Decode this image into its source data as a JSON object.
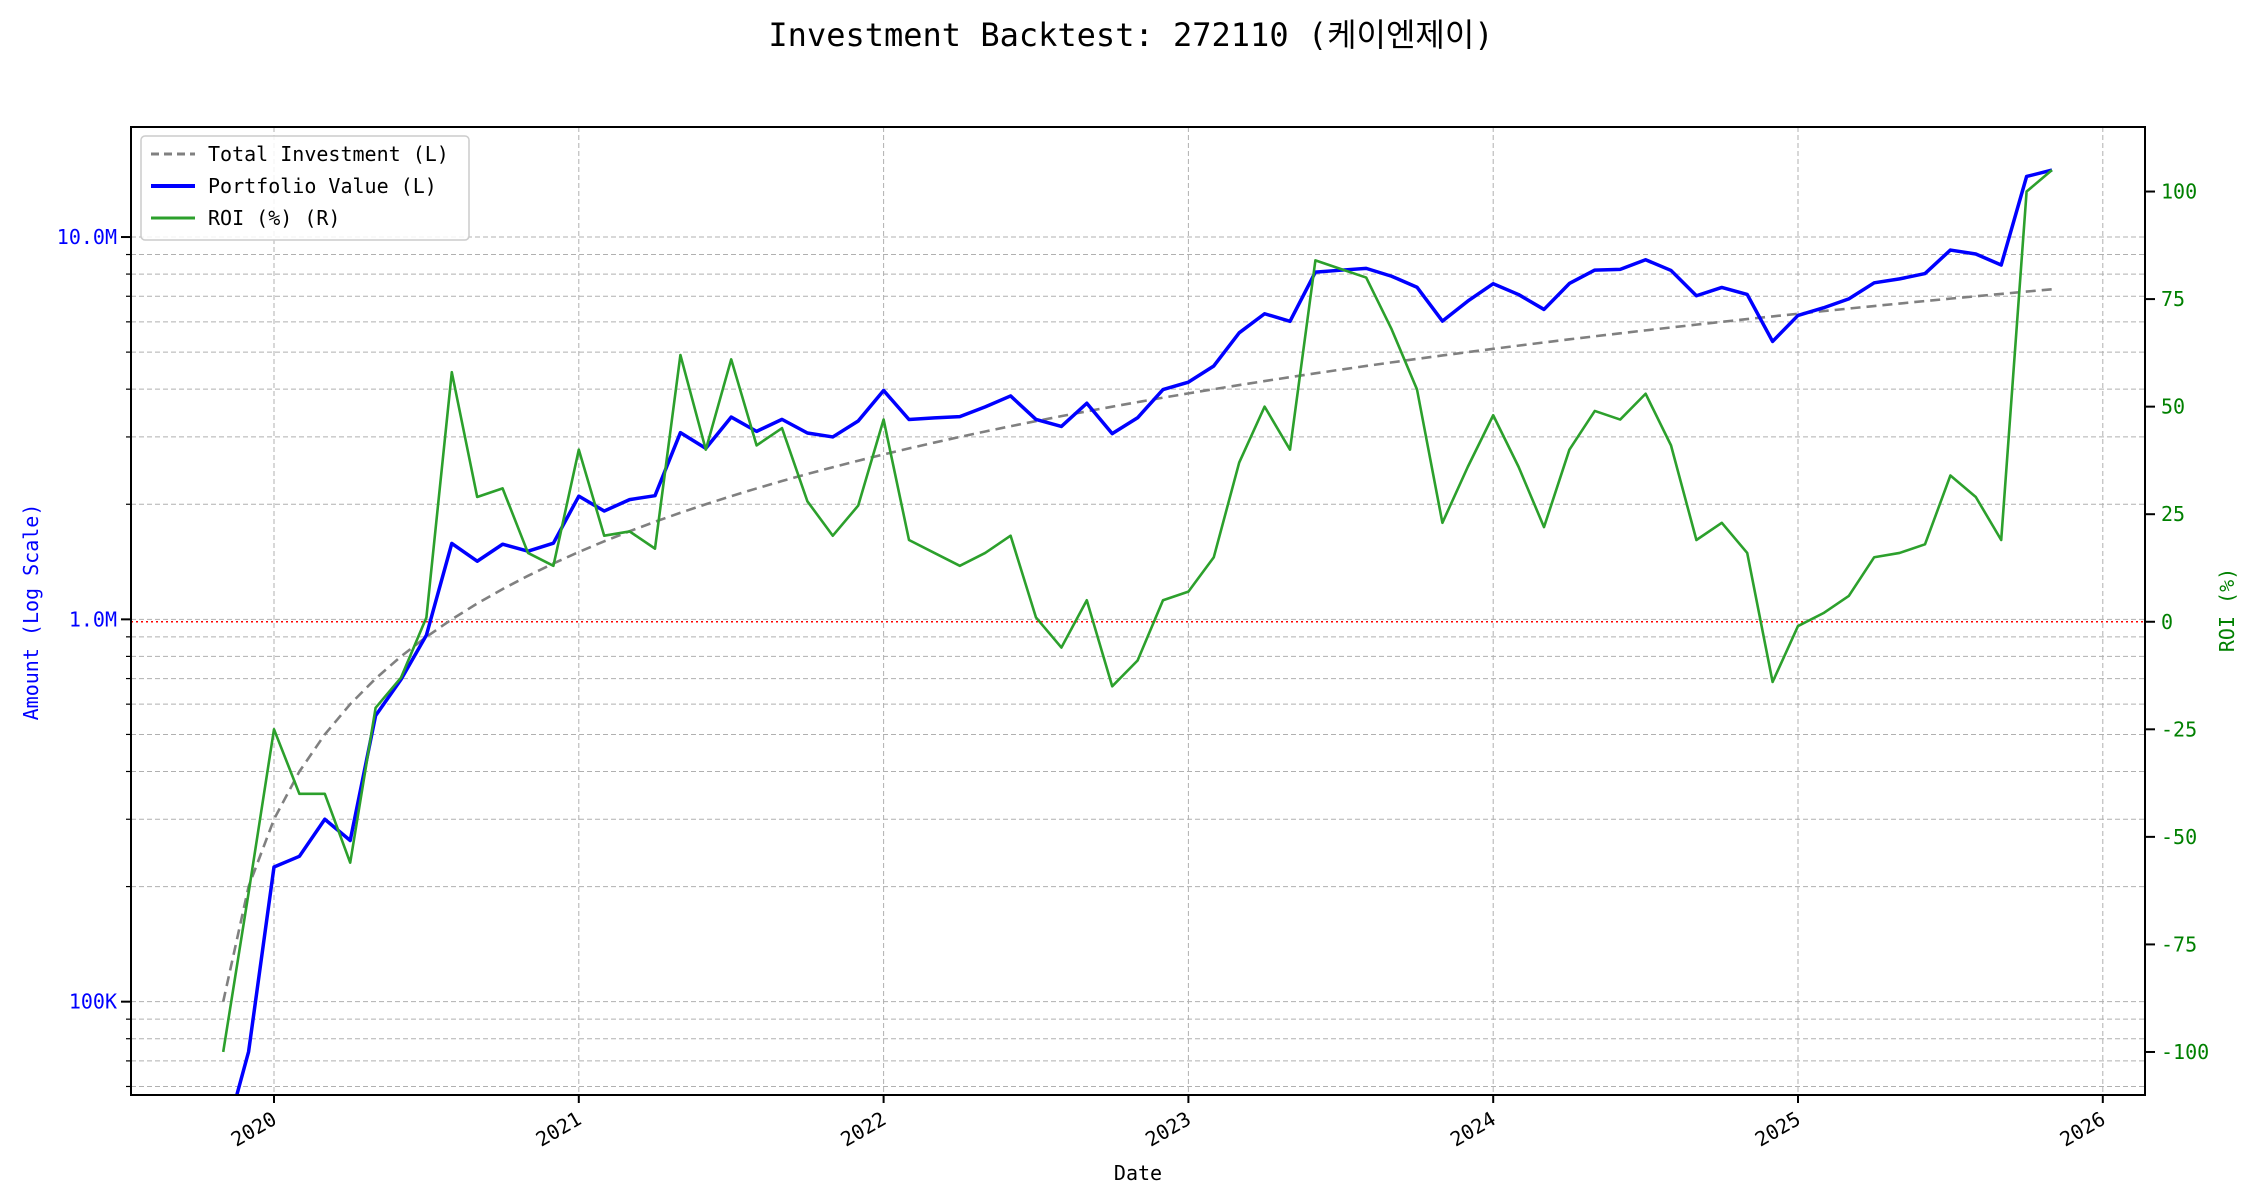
{
  "chart_data": {
    "type": "line",
    "title": "Investment Backtest: 272110 (케이엔제이)",
    "xlabel": "Date",
    "ylabel_left": "Amount (Log Scale)",
    "ylabel_right": "ROI (%)",
    "x_ticks": [
      "2020",
      "2021",
      "2022",
      "2023",
      "2024",
      "2025",
      "2026"
    ],
    "x_range": [
      "2019-07",
      "2026-02"
    ],
    "left_axis": {
      "scale": "log",
      "range": [
        57000,
        19400000
      ],
      "ticks": [
        {
          "value": 100000,
          "label": "100K"
        },
        {
          "value": 1000000,
          "label": "1.0M"
        },
        {
          "value": 10000000,
          "label": "10.0M"
        }
      ],
      "color": "#0000ff"
    },
    "right_axis": {
      "scale": "linear",
      "range": [
        -110,
        115
      ],
      "ticks": [
        "-100",
        "-75",
        "-50",
        "-25",
        "0",
        "25",
        "50",
        "75",
        "100"
      ],
      "color": "#008000"
    },
    "reference_line": {
      "axis": "right",
      "value": 0,
      "color": "#ff0000"
    },
    "grid": true,
    "legend": {
      "placement": "top-left",
      "entries": [
        "Total Investment (L)",
        "Portfolio Value (L)",
        "ROI (%) (R)"
      ]
    },
    "start_month": "2019-11",
    "dates": [
      "2019-11",
      "2019-12",
      "2020-01",
      "2020-02",
      "2020-03",
      "2020-04",
      "2020-05",
      "2020-06",
      "2020-07",
      "2020-08",
      "2020-09",
      "2020-10",
      "2020-11",
      "2020-12",
      "2021-01",
      "2021-02",
      "2021-03",
      "2021-04",
      "2021-05",
      "2021-06",
      "2021-07",
      "2021-08",
      "2021-09",
      "2021-10",
      "2021-11",
      "2021-12",
      "2022-01",
      "2022-02",
      "2022-03",
      "2022-04",
      "2022-05",
      "2022-06",
      "2022-07",
      "2022-08",
      "2022-09",
      "2022-10",
      "2022-11",
      "2022-12",
      "2023-01",
      "2023-02",
      "2023-03",
      "2023-04",
      "2023-05",
      "2023-06",
      "2023-07",
      "2023-08",
      "2023-09",
      "2023-10",
      "2023-11",
      "2023-12",
      "2024-01",
      "2024-02",
      "2024-03",
      "2024-04",
      "2024-05",
      "2024-06",
      "2024-07",
      "2024-08",
      "2024-09",
      "2024-10",
      "2024-11",
      "2024-12",
      "2025-01",
      "2025-02",
      "2025-03",
      "2025-04",
      "2025-05",
      "2025-06",
      "2025-07",
      "2025-08",
      "2025-09",
      "2025-10",
      "2025-11"
    ],
    "series": [
      {
        "name": "Total Investment (L)",
        "axis": "left",
        "color": "#808080",
        "style": "dashed",
        "values": [
          100000,
          200000,
          300000,
          400000,
          500000,
          600000,
          700000,
          800000,
          900000,
          1000000,
          1100000,
          1200000,
          1300000,
          1400000,
          1500000,
          1600000,
          1700000,
          1800000,
          1900000,
          2000000,
          2100000,
          2200000,
          2300000,
          2400000,
          2500000,
          2600000,
          2700000,
          2800000,
          2900000,
          3000000,
          3100000,
          3200000,
          3300000,
          3400000,
          3500000,
          3600000,
          3700000,
          3800000,
          3900000,
          4000000,
          4100000,
          4200000,
          4300000,
          4400000,
          4500000,
          4600000,
          4700000,
          4800000,
          4900000,
          5000000,
          5100000,
          5200000,
          5300000,
          5400000,
          5500000,
          5600000,
          5700000,
          5800000,
          5900000,
          6000000,
          6100000,
          6200000,
          6300000,
          6400000,
          6500000,
          6600000,
          6700000,
          6800000,
          6900000,
          7000000,
          7100000,
          7200000,
          7300000
        ]
      },
      {
        "name": "Portfolio Value (L)",
        "axis": "left",
        "color": "#0000ff",
        "style": "solid",
        "values": [
          0,
          74000,
          225000,
          240000,
          300000,
          264000,
          560000,
          696000,
          909000,
          1580000,
          1419000,
          1572000,
          1508000,
          1582000,
          2100000,
          1920000,
          2057000,
          2106000,
          3078000,
          2800000,
          3381000,
          3102000,
          3335000,
          3072000,
          3000000,
          3302000,
          3969000,
          3332000,
          3364000,
          3390000,
          3596000,
          3840000,
          3333000,
          3196000,
          3675000,
          3060000,
          3367000,
          3990000,
          4173000,
          4600000,
          5617000,
          6300000,
          6020000,
          8096000,
          8190000,
          8280000,
          7896000,
          7392000,
          6027000,
          6800000,
          7548000,
          7072000,
          6466000,
          7560000,
          8195000,
          8232000,
          8721000,
          8178000,
          7021000,
          7380000,
          7076000,
          5332000,
          6237000,
          6528000,
          6890000,
          7590000,
          7772000,
          8024000,
          9246000,
          9030000,
          8449000,
          14400000,
          14965000
        ]
      },
      {
        "name": "ROI (%) (R)",
        "axis": "right",
        "color": "#2ca02c",
        "style": "solid",
        "values": [
          -100,
          -63,
          -25,
          -40,
          -40,
          -56,
          -20,
          -13,
          1,
          58,
          29,
          31,
          16,
          13,
          40,
          20,
          21,
          17,
          62,
          40,
          61,
          41,
          45,
          28,
          20,
          27,
          47,
          19,
          16,
          13,
          16,
          20,
          1,
          -6,
          5,
          -15,
          -9,
          5,
          7,
          15,
          37,
          50,
          40,
          84,
          82,
          80,
          68,
          54,
          23,
          36,
          48,
          36,
          22,
          40,
          49,
          47,
          53,
          41,
          19,
          23,
          16,
          -14,
          -1,
          2,
          6,
          15,
          16,
          18,
          34,
          29,
          19,
          100,
          105
        ]
      }
    ]
  }
}
